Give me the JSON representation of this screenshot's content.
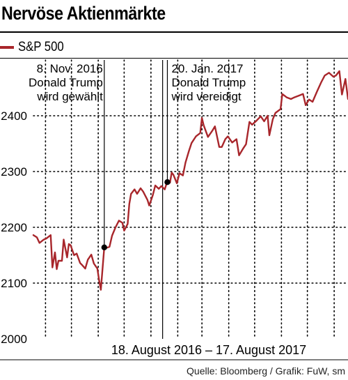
{
  "title": "Nervöse Aktienmärkte",
  "source": "Quelle: Bloomberg / Grafik: FuW, sm",
  "colors": {
    "series": "#a8262b",
    "text": "#000000",
    "grid": "#000000"
  },
  "chart_data": {
    "type": "line",
    "title": "Nervöse Aktienmärkte",
    "xlabel": "18. August 2016 – 17. August 2017",
    "ylabel": "",
    "x_range": [
      "2016-08-18",
      "2017-08-17"
    ],
    "ylim": [
      2000,
      2500
    ],
    "yticks": [
      2000,
      2100,
      2200,
      2300,
      2400
    ],
    "grid": "dotted",
    "legend_position": "top-left",
    "series": [
      {
        "name": "S&P 500",
        "color": "#a8262b",
        "x": [
          "2016-08-18",
          "2016-08-22",
          "2016-08-25",
          "2016-08-30",
          "2016-09-02",
          "2016-09-07",
          "2016-09-09",
          "2016-09-12",
          "2016-09-14",
          "2016-09-16",
          "2016-09-20",
          "2016-09-22",
          "2016-09-26",
          "2016-09-28",
          "2016-09-30",
          "2016-10-04",
          "2016-10-07",
          "2016-10-11",
          "2016-10-13",
          "2016-10-17",
          "2016-10-20",
          "2016-10-24",
          "2016-10-27",
          "2016-10-31",
          "2016-11-02",
          "2016-11-04",
          "2016-11-08",
          "2016-11-10",
          "2016-11-14",
          "2016-11-17",
          "2016-11-21",
          "2016-11-25",
          "2016-11-29",
          "2016-12-01",
          "2016-12-05",
          "2016-12-07",
          "2016-12-09",
          "2016-12-13",
          "2016-12-16",
          "2016-12-20",
          "2016-12-23",
          "2016-12-28",
          "2016-12-30",
          "2017-01-03",
          "2017-01-06",
          "2017-01-10",
          "2017-01-13",
          "2017-01-17",
          "2017-01-20",
          "2017-01-23",
          "2017-01-25",
          "2017-01-27",
          "2017-01-31",
          "2017-02-03",
          "2017-02-07",
          "2017-02-10",
          "2017-02-14",
          "2017-02-17",
          "2017-02-22",
          "2017-02-27",
          "2017-03-01",
          "2017-03-03",
          "2017-03-08",
          "2017-03-13",
          "2017-03-16",
          "2017-03-21",
          "2017-03-24",
          "2017-03-28",
          "2017-03-31",
          "2017-04-05",
          "2017-04-10",
          "2017-04-13",
          "2017-04-18",
          "2017-04-21",
          "2017-04-25",
          "2017-04-28",
          "2017-05-03",
          "2017-05-08",
          "2017-05-12",
          "2017-05-16",
          "2017-05-18",
          "2017-05-22",
          "2017-05-25",
          "2017-05-31",
          "2017-06-02",
          "2017-06-07",
          "2017-06-12",
          "2017-06-16",
          "2017-06-21",
          "2017-06-26",
          "2017-06-29",
          "2017-07-03",
          "2017-07-07",
          "2017-07-12",
          "2017-07-17",
          "2017-07-21",
          "2017-07-26",
          "2017-07-31",
          "2017-08-03",
          "2017-08-07",
          "2017-08-10",
          "2017-08-14",
          "2017-08-17"
        ],
        "y": [
          2186,
          2182,
          2172,
          2178,
          2180,
          2186,
          2128,
          2155,
          2125,
          2140,
          2140,
          2178,
          2146,
          2170,
          2168,
          2150,
          2153,
          2136,
          2133,
          2126,
          2142,
          2151,
          2135,
          2126,
          2105,
          2088,
          2164,
          2163,
          2165,
          2185,
          2200,
          2212,
          2208,
          2194,
          2206,
          2242,
          2260,
          2268,
          2260,
          2270,
          2264,
          2249,
          2239,
          2257,
          2275,
          2269,
          2274,
          2268,
          2283,
          2280,
          2298,
          2294,
          2279,
          2297,
          2293,
          2316,
          2337,
          2351,
          2363,
          2369,
          2396,
          2383,
          2362,
          2373,
          2381,
          2344,
          2344,
          2358,
          2363,
          2352,
          2358,
          2329,
          2342,
          2349,
          2389,
          2384,
          2391,
          2399,
          2390,
          2400,
          2365,
          2394,
          2405,
          2412,
          2439,
          2433,
          2430,
          2433,
          2436,
          2439,
          2419,
          2429,
          2425,
          2443,
          2460,
          2472,
          2477,
          2470,
          2472,
          2480,
          2438,
          2466,
          2430
        ]
      }
    ],
    "annotations": [
      {
        "date": "2016-11-08",
        "value": 2164,
        "label_lines": [
          "8. Nov. 2016",
          "Donald Trump",
          "wird gewählt"
        ]
      },
      {
        "date": "2017-01-20",
        "value": 2281,
        "label_lines": [
          "20. Jan. 2017",
          "Donald Trump",
          "wird vereidigt"
        ]
      }
    ]
  }
}
